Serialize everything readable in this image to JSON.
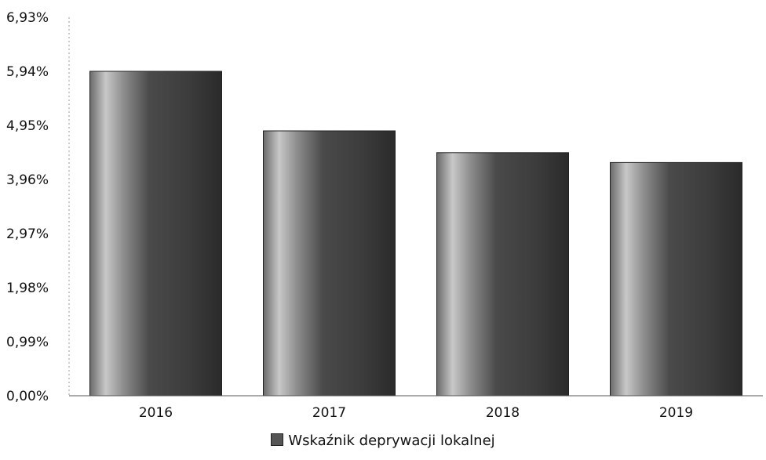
{
  "chart_data": {
    "type": "bar",
    "categories": [
      "2016",
      "2017",
      "2018",
      "2019"
    ],
    "series": [
      {
        "name": "Wskaźnik deprywacji lokalnej",
        "values": [
          5.94,
          4.85,
          4.45,
          4.27
        ]
      }
    ],
    "y_ticks": [
      "0,00%",
      "0,99%",
      "1,98%",
      "2,97%",
      "3,96%",
      "4,95%",
      "5,94%",
      "6,93%"
    ],
    "ylim": [
      0,
      6.93
    ],
    "grid": false,
    "legend_position": "bottom-center",
    "bar_color": "#555555"
  }
}
